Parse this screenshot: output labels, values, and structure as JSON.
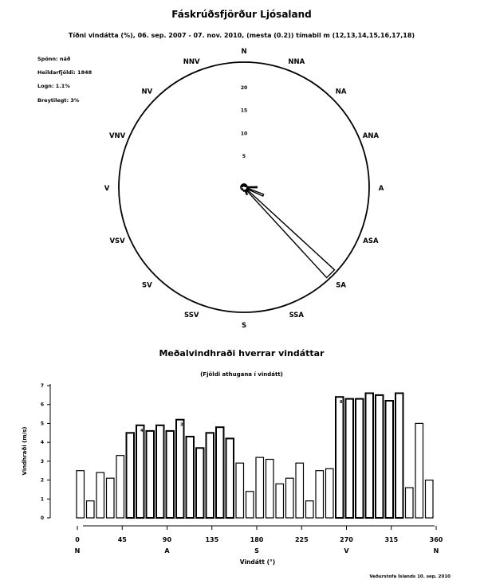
{
  "chart_data": [
    {
      "type": "polar",
      "title": "Fáskrúðsfjörður Ljósaland",
      "subtitle": "Tíðni vindátta (%), 06. sep. 2007 - 07. nov. 2010, (mesta (0.2)) tímabil m (12,13,14,15,16,17,18)",
      "info_lines": [
        "Spönn: náð",
        "Heildarfjöldi: 1848",
        "Logn: 1.1%",
        "Breytilegt: 3%"
      ],
      "direction_labels": [
        "N",
        "NNA",
        "NA",
        "ANA",
        "A",
        "ASA",
        "SA",
        "SSA",
        "S",
        "SSV",
        "SV",
        "VSV",
        "V",
        "VNV",
        "NV",
        "NNV"
      ],
      "radial_ticks": [
        5,
        10,
        15,
        20
      ],
      "radial_max": 24,
      "frequencies_pct": [
        0.3,
        0.2,
        0.2,
        0.3,
        2.5,
        4.0,
        23.5,
        1.5,
        0.8,
        0.5,
        0.4,
        0.6,
        0.5,
        0.3,
        0.3,
        0.4
      ],
      "grid": false
    },
    {
      "type": "bar",
      "title": "Meðalvindhraði hverrar vindáttar",
      "subtitle": "(Fjöldi athugana í vindátt)",
      "xlabel": "Vindátt (°)",
      "ylabel": "Vindhraði (m/s)",
      "ylim": [
        0,
        7
      ],
      "xlim": [
        0,
        360
      ],
      "x_ticks": [
        0,
        45,
        90,
        135,
        180,
        225,
        270,
        315,
        360
      ],
      "x_ticks_display": [
        "0",
        "45",
        "90",
        "135",
        "180",
        "225",
        "270",
        "315",
        "360"
      ],
      "compass_ticks": [
        {
          "x": 0,
          "label": "N"
        },
        {
          "x": 90,
          "label": "A"
        },
        {
          "x": 180,
          "label": "S"
        },
        {
          "x": 270,
          "label": "V"
        },
        {
          "x": 360,
          "label": "N"
        }
      ],
      "bin_width": 10,
      "values": [
        2.5,
        0.9,
        2.4,
        2.1,
        3.3,
        4.5,
        4.9,
        4.6,
        4.9,
        4.6,
        5.2,
        4.3,
        3.7,
        4.5,
        4.8,
        4.2,
        2.9,
        1.4,
        3.2,
        3.1,
        1.8,
        2.1,
        2.9,
        0.9,
        2.5,
        2.6,
        6.4,
        6.3,
        6.3,
        6.6,
        6.5,
        6.2,
        6.6,
        1.6,
        5.0,
        2.0
      ],
      "counts": [
        "",
        "",
        "",
        "",
        "",
        "",
        "4",
        "",
        "",
        "",
        "3",
        "",
        "",
        "",
        "",
        "",
        "",
        "",
        "",
        "",
        "",
        "",
        "",
        "",
        "",
        "",
        "8",
        "",
        "",
        "",
        "",
        "",
        "",
        "",
        "",
        ""
      ],
      "footnote": "Veðurstofa Íslands   10. sep. 2010",
      "grid": false
    }
  ]
}
